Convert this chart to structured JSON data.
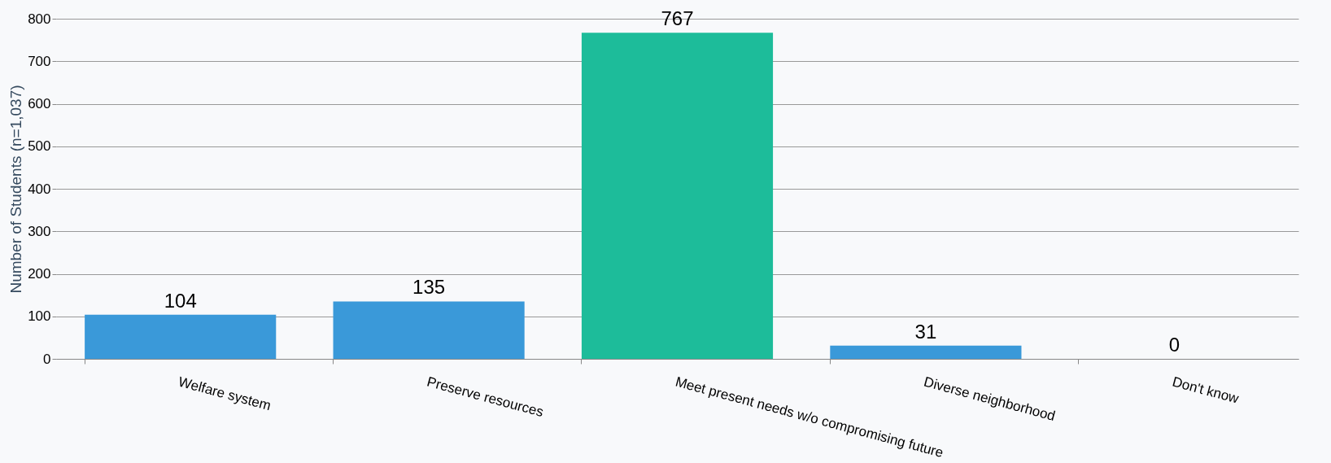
{
  "chart_data": {
    "type": "bar",
    "ylabel": "Number of Students (n=1,037)",
    "categories": [
      "Welfare system",
      "Preserve resources",
      "Meet present needs w/o compromising future",
      "Diverse neighborhood",
      "Don't know"
    ],
    "values": [
      104,
      135,
      767,
      31,
      0
    ],
    "colors": [
      "#3a99d9",
      "#3a99d9",
      "#1dbc9a",
      "#3a99d9",
      "#3a99d9"
    ],
    "ylim": [
      0,
      800
    ],
    "yticks": [
      0,
      100,
      200,
      300,
      400,
      500,
      600,
      700,
      800
    ],
    "grid": "y",
    "data_labels": true
  }
}
